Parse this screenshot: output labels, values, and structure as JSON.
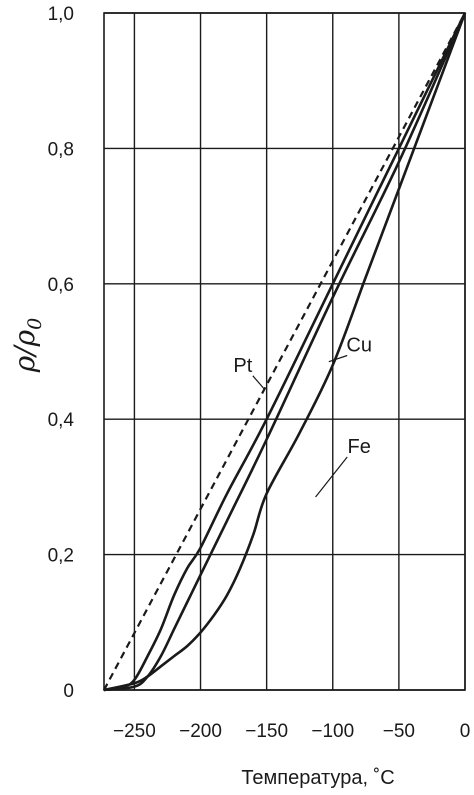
{
  "chart_data": {
    "type": "line",
    "xlabel": "Температура, ˚C",
    "ylabel": "ρ/ρ0",
    "xlim": [
      -273,
      0
    ],
    "ylim": [
      0,
      1.0
    ],
    "x_ticks": [
      -250,
      -200,
      -150,
      -100,
      -50,
      0
    ],
    "x_tick_labels": [
      "−250",
      "−200",
      "−150",
      "−100",
      "−50",
      "0"
    ],
    "y_ticks": [
      0,
      0.2,
      0.4,
      0.6,
      0.8,
      1.0
    ],
    "y_tick_labels": [
      "0",
      "0,2",
      "0,4",
      "0,6",
      "0,8",
      "1,0"
    ],
    "grid": true,
    "series": [
      {
        "name": "Pt",
        "style": "solid",
        "x": [
          -273,
          -258,
          -250,
          -240,
          -230,
          -220,
          -210,
          -200,
          -180,
          -150,
          -100,
          -50,
          0
        ],
        "y": [
          0.0,
          0.005,
          0.015,
          0.05,
          0.09,
          0.14,
          0.18,
          0.21,
          0.29,
          0.4,
          0.6,
          0.8,
          1.0
        ]
      },
      {
        "name": "Cu",
        "style": "solid",
        "x": [
          -273,
          -250,
          -240,
          -230,
          -220,
          -210,
          -200,
          -180,
          -150,
          -100,
          -50,
          0
        ],
        "y": [
          0.0,
          0.005,
          0.02,
          0.05,
          0.09,
          0.13,
          0.17,
          0.25,
          0.37,
          0.58,
          0.78,
          1.0
        ]
      },
      {
        "name": "Fe",
        "style": "solid",
        "x": [
          -273,
          -250,
          -240,
          -230,
          -220,
          -210,
          -200,
          -190,
          -180,
          -170,
          -160,
          -150,
          -125,
          -100,
          -75,
          -50,
          0
        ],
        "y": [
          0.0,
          0.01,
          0.02,
          0.035,
          0.05,
          0.065,
          0.085,
          0.11,
          0.14,
          0.18,
          0.23,
          0.29,
          0.38,
          0.48,
          0.61,
          0.74,
          1.0
        ]
      },
      {
        "style": "dashed",
        "x": [
          -273,
          0
        ],
        "y": [
          0.0,
          1.0
        ]
      }
    ],
    "annotations": [
      {
        "text": "Pt",
        "series": "Pt",
        "x": -168,
        "y": 0.47,
        "point_x": -152,
        "point_y": 0.445
      },
      {
        "text": "Cu",
        "series": "Cu",
        "x": -80,
        "y": 0.5,
        "point_x": -103,
        "point_y": 0.485
      },
      {
        "text": "Fe",
        "series": "Fe",
        "x": -80,
        "y": 0.35,
        "point_x": -113,
        "point_y": 0.285
      }
    ]
  }
}
